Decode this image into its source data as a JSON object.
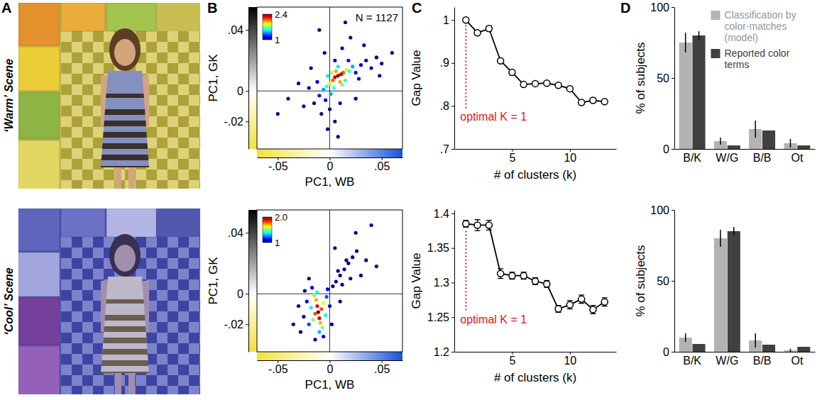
{
  "panel_labels": [
    "A",
    "B",
    "C",
    "D"
  ],
  "scene_labels": [
    "‘Warm’ Scene",
    "‘Cool’ Scene"
  ],
  "chart_data": [
    {
      "type": "scatter",
      "x_label": "PC1, WB",
      "y_label": "PC1, GK",
      "annotation": "N = 1127",
      "xlim": [
        -0.07,
        0.07
      ],
      "ylim": [
        -0.038,
        0.055
      ],
      "xticks": [
        {
          "value": -0.05,
          "label": "-.05"
        },
        0,
        {
          "value": 0.05,
          "label": ".05"
        }
      ],
      "yticks": [
        {
          "value": -0.02,
          "label": "-.02"
        },
        0,
        {
          "value": 0.04,
          "label": ".04"
        }
      ],
      "x": [
        0.008,
        0.005,
        0.011,
        0.003,
        0.013,
        0.006,
        0.01,
        0,
        0.016,
        0.002,
        0.012,
        -0.003,
        0.019,
        0.004,
        0.008,
        -0.006,
        0.022,
        0.001,
        -0.002,
        0.015,
        -0.01,
        -0.004,
        0.025,
        0.03,
        0.018,
        0.005,
        -0.012,
        -0.015,
        0.035,
        0.028,
        0,
        -0.008,
        0.01,
        -0.02,
        0.04,
        0.045,
        0.05,
        0.012,
        -0.005,
        0.02,
        -0.025,
        -0.03,
        0.005,
        -0.002,
        0.06,
        0.033,
        -0.04,
        0.015,
        -0.01,
        0.025,
        -0.05,
        0.008,
        0.048,
        -0.018
      ],
      "values": [
        0.01,
        0.009,
        0.011,
        0.007,
        0.012,
        0.013,
        0.006,
        0.005,
        0.014,
        0.012,
        0.004,
        0.003,
        0.013,
        0.002,
        0.016,
        0.001,
        0.016,
        -0.002,
        0.01,
        0.007,
        -0.003,
        -0.006,
        0.012,
        0.017,
        0.02,
        0.02,
        0.006,
        -0.008,
        0.02,
        0.008,
        -0.012,
        -0.015,
        -0.008,
        0.002,
        0.015,
        0.022,
        0.018,
        0.028,
        0.025,
        0.035,
        -0.01,
        0.005,
        -0.02,
        -0.025,
        0.025,
        0.03,
        -0.005,
        0.045,
        0.04,
        -0.005,
        -0.015,
        -0.03,
        0.01,
        0.015
      ],
      "density": [
        2.4,
        2.3,
        2.3,
        2.1,
        2.1,
        2.0,
        2.0,
        1.8,
        1.8,
        1.8,
        1.7,
        1.6,
        1.6,
        1.6,
        1.5,
        1.4,
        1.4,
        1.4,
        1.5,
        1.6,
        1.2,
        1.2,
        1.2,
        1.1,
        1.2,
        1.1,
        1.1,
        1.0,
        1.0,
        1.1,
        1.0,
        1.0,
        1.1,
        1.0,
        1.0,
        1.0,
        1.0,
        1.0,
        1.0,
        1.0,
        1.0,
        1.0,
        1.0,
        1.0,
        1.0,
        1.0,
        1.0,
        1.0,
        1.0,
        1.0,
        1.0,
        1.0,
        1.0,
        1.0
      ],
      "colorbar": {
        "range": [
          1,
          2.4
        ],
        "ticks": [
          1,
          2.4
        ]
      }
    },
    {
      "type": "line",
      "x_label": "# of clusters (k)",
      "y_label": "Gap Value",
      "annotation": "optimal K = 1",
      "marker": "circle",
      "color": "#000000",
      "xlim": [
        0,
        14
      ],
      "xticks": [
        5,
        10
      ],
      "ylim": [
        0.7,
        1.03
      ],
      "yticks": [
        {
          "value": 0.7,
          "label": ".7"
        },
        {
          "value": 0.8,
          "label": ".8"
        },
        {
          "value": 0.9,
          "label": ".9"
        },
        1
      ],
      "x": [
        1,
        2,
        3,
        4,
        5,
        6,
        7,
        8,
        9,
        10,
        11,
        12,
        13
      ],
      "values": [
        1.0,
        0.97,
        0.98,
        0.905,
        0.878,
        0.85,
        0.852,
        0.853,
        0.848,
        0.84,
        0.808,
        0.813,
        0.81
      ],
      "errors": [
        0.004,
        0.005,
        0.006,
        0.005,
        0.006,
        0.004,
        0.004,
        0.004,
        0.004,
        0.005,
        0.005,
        0.005,
        0.004
      ]
    },
    {
      "type": "bar",
      "y_label": "% of subjects",
      "legend": "top-right",
      "categories": [
        "B/K",
        "W/G",
        "B/B",
        "Ot"
      ],
      "ylim": [
        0,
        100
      ],
      "yticks": [
        0,
        50,
        100
      ],
      "series": [
        {
          "name": "Classification by color-matches (model)",
          "color": "#b3b3b3",
          "values": [
            75,
            5.5,
            14,
            4
          ],
          "errors": [
            7,
            2.5,
            6,
            3
          ]
        },
        {
          "name": "Reported color terms",
          "color": "#404040",
          "values": [
            80,
            2.5,
            13,
            2.5
          ],
          "errors": [
            3,
            null,
            null,
            null
          ]
        }
      ]
    },
    {
      "type": "scatter",
      "x_label": "PC1, WB",
      "y_label": "PC1, GK",
      "xlim": [
        -0.07,
        0.07
      ],
      "ylim": [
        -0.038,
        0.055
      ],
      "xticks": [
        {
          "value": -0.05,
          "label": "-.05"
        },
        0,
        {
          "value": 0.05,
          "label": ".05"
        }
      ],
      "yticks": [
        {
          "value": -0.02,
          "label": "-.02"
        },
        0,
        {
          "value": 0.04,
          "label": ".04"
        }
      ],
      "x": [
        -0.011,
        -0.012,
        -0.01,
        -0.013,
        -0.009,
        -0.008,
        -0.014,
        -0.015,
        -0.007,
        -0.006,
        -0.016,
        -0.012,
        -0.004,
        -0.018,
        -0.01,
        -0.02,
        -0.003,
        -0.017,
        -0.022,
        -0.006,
        0,
        -0.002,
        0.003,
        0.006,
        0.01,
        0.014,
        0.018,
        0.022,
        0.026,
        0.012,
        0.016,
        0.008,
        0.02,
        -0.025,
        -0.028,
        -0.014,
        -0.02,
        0.002,
        -0.03,
        0.03,
        0.035,
        0.04,
        0.025,
        0.045,
        -0.035,
        0.005,
        -0.024,
        0.01
      ],
      "values": [
        -0.012,
        -0.008,
        -0.016,
        -0.004,
        -0.019,
        -0.01,
        -0.013,
        -0.001,
        -0.022,
        -0.006,
        -0.017,
        0.001,
        -0.014,
        -0.009,
        -0.025,
        -0.02,
        -0.002,
        0.004,
        -0.005,
        -0.028,
        -0.008,
        0.003,
        0.005,
        0.008,
        0.012,
        0.016,
        0.02,
        0.024,
        0.028,
        0.006,
        0.022,
        0.015,
        0.01,
        -0.015,
        -0.025,
        -0.03,
        0.01,
        -0.02,
        -0.008,
        0.012,
        0.022,
        0.045,
        0.04,
        0.018,
        -0.02,
        0.03,
        0.002,
        -0.005
      ],
      "density": [
        2.0,
        1.9,
        1.9,
        1.7,
        1.7,
        1.8,
        1.8,
        1.5,
        1.5,
        1.6,
        1.5,
        1.4,
        1.4,
        1.4,
        1.3,
        1.2,
        1.2,
        1.1,
        1.1,
        1.1,
        1.1,
        1.1,
        1.0,
        1.0,
        1.0,
        1.0,
        1.0,
        1.0,
        1.0,
        1.0,
        1.0,
        1.0,
        1.0,
        1.0,
        1.0,
        1.0,
        1.0,
        1.0,
        1.0,
        1.0,
        1.0,
        1.0,
        1.0,
        1.0,
        1.0,
        1.0,
        1.0,
        1.0
      ],
      "colorbar": {
        "range": [
          1,
          2
        ],
        "ticks": [
          1,
          {
            "value": 2,
            "label": "2.0"
          }
        ]
      }
    },
    {
      "type": "line",
      "x_label": "# of clusters (k)",
      "y_label": "Gap Value",
      "annotation": "optimal K = 1",
      "marker": "circle",
      "color": "#000000",
      "xlim": [
        0,
        14
      ],
      "xticks": [
        5,
        10
      ],
      "ylim": [
        1.2,
        1.405
      ],
      "yticks": [
        1.2,
        1.25,
        1.3,
        1.35,
        1.4
      ],
      "x": [
        1,
        2,
        3,
        4,
        5,
        6,
        7,
        8,
        9,
        10,
        11,
        12,
        13
      ],
      "values": [
        1.385,
        1.383,
        1.383,
        1.313,
        1.31,
        1.31,
        1.302,
        1.298,
        1.262,
        1.268,
        1.276,
        1.261,
        1.272
      ],
      "errors": [
        0.005,
        0.008,
        0.007,
        0.007,
        0.005,
        0.005,
        0.005,
        0.005,
        0.005,
        0.006,
        0.006,
        0.006,
        0.006
      ]
    },
    {
      "type": "bar",
      "y_label": "% of subjects",
      "categories": [
        "B/K",
        "W/G",
        "B/B",
        "Ot"
      ],
      "ylim": [
        0,
        100
      ],
      "yticks": [
        0,
        50,
        100
      ],
      "series": [
        {
          "color": "#b3b3b3",
          "values": [
            10,
            80,
            8,
            1
          ],
          "errors": [
            3,
            6,
            5,
            1
          ]
        },
        {
          "color": "#404040",
          "values": [
            5.5,
            85,
            5,
            3.5
          ],
          "errors": [
            null,
            3,
            null,
            null
          ]
        }
      ]
    }
  ]
}
